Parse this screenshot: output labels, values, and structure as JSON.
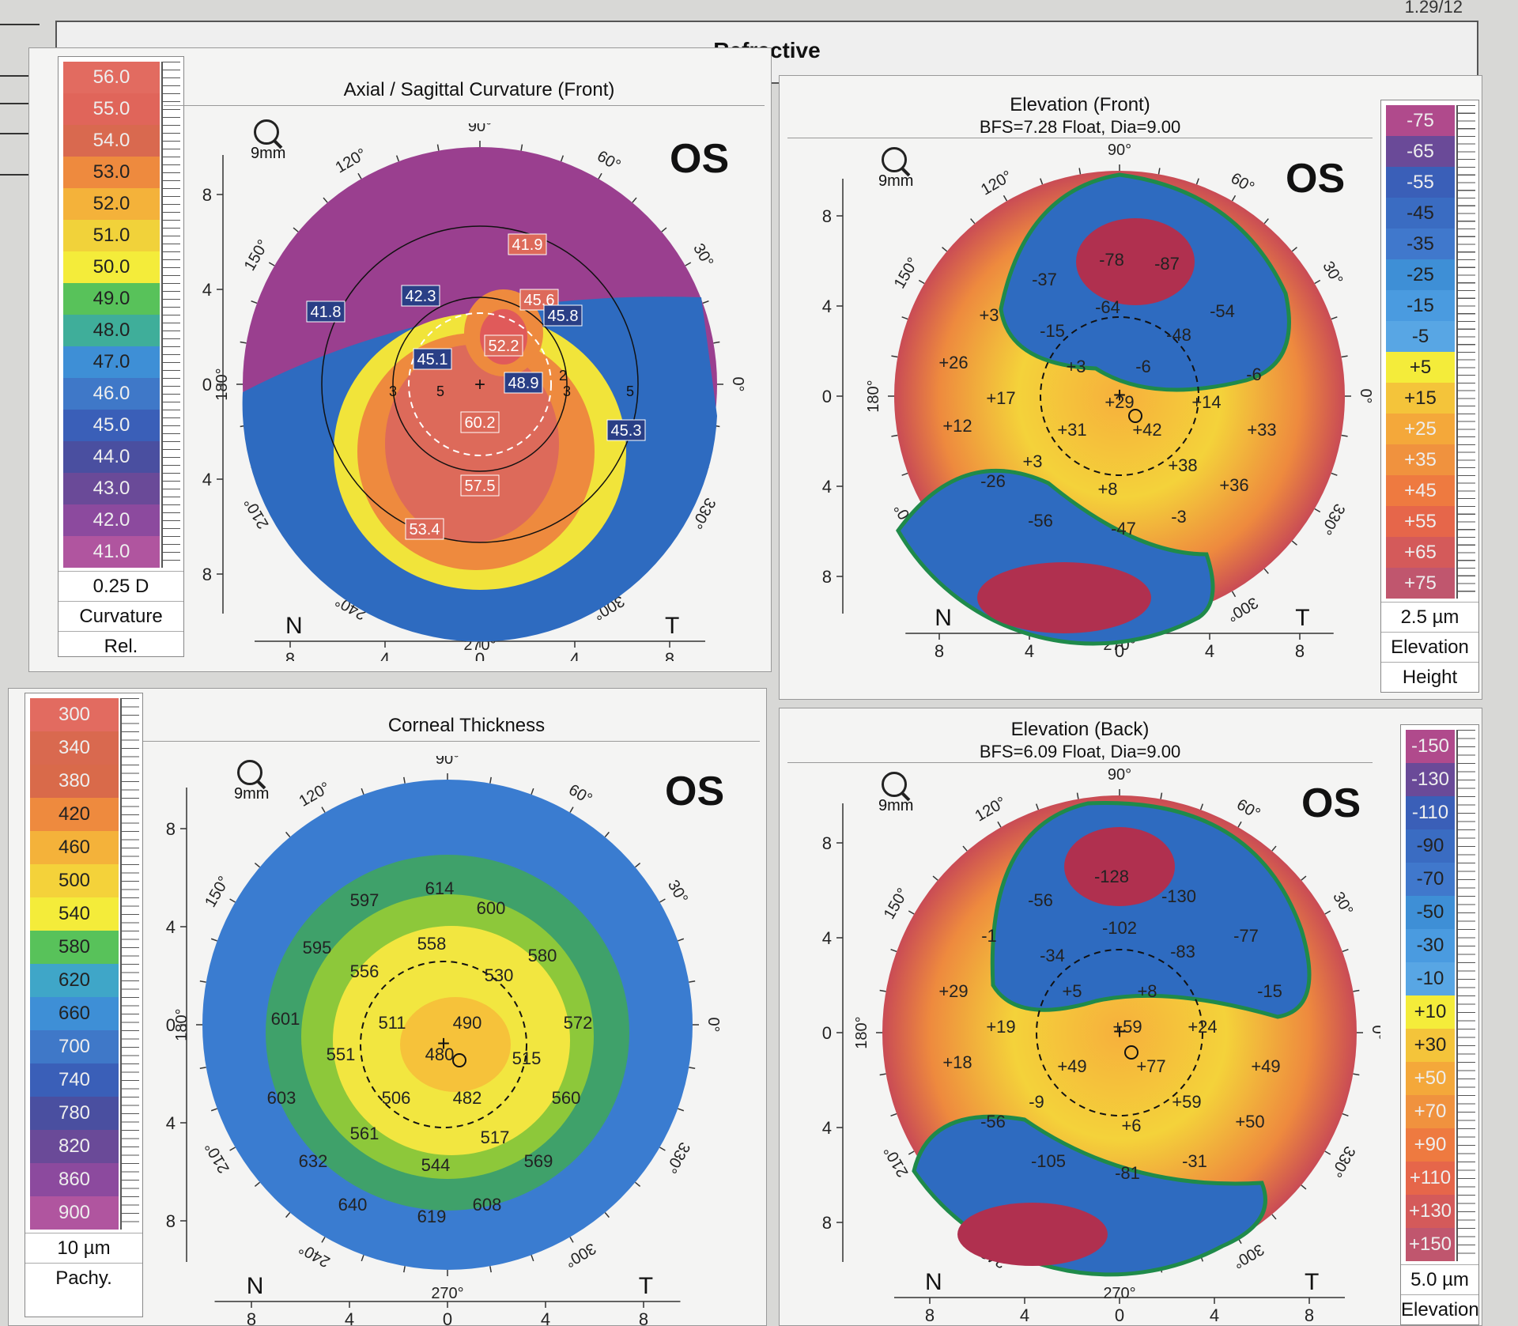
{
  "header": {
    "title": "Refractive",
    "corner_label": "1.29/12"
  },
  "eye": "OS",
  "zoom_label": "9mm",
  "axis_ticks": [
    "8",
    "4",
    "0",
    "4",
    "8"
  ],
  "direction_labels": {
    "nasal": "N",
    "temporal": "T"
  },
  "angle_labels": {
    "a90": "90°",
    "a60": "60°",
    "a30": "30°",
    "a0": "0°",
    "a330": "330°",
    "a300": "300°",
    "a270": "270°",
    "a240": "240°",
    "a210": "210°",
    "a180": "180°",
    "a150": "150°",
    "a120": "120°"
  },
  "panels": {
    "axial": {
      "title": "Axial / Sagittal Curvature (Front)",
      "values": [
        "41.9",
        "42.3",
        "41.8",
        "45.6",
        "45.8",
        "52.2",
        "45.1",
        "48.9",
        "60.2",
        "45.3",
        "57.5",
        "53.4"
      ],
      "ring_labels": [
        "5",
        "3",
        "3",
        "5",
        "2"
      ]
    },
    "elev_front": {
      "title": "Elevation (Front)",
      "subtitle": "BFS=7.28 Float, Dia=9.00",
      "values": [
        "-37",
        "-78",
        "-87",
        "+3",
        "-64",
        "-54",
        "-15",
        "-48",
        "+26",
        "+3",
        "-6",
        "-6",
        "+17",
        "+29",
        "+14",
        "+12",
        "+31",
        "+42",
        "+33",
        "+3",
        "+38",
        "-26",
        "+8",
        "+36",
        "-56",
        "-47",
        "-3"
      ]
    },
    "thickness": {
      "title": "Corneal Thickness",
      "values": [
        "614",
        "597",
        "600",
        "595",
        "558",
        "580",
        "556",
        "530",
        "601",
        "511",
        "490",
        "572",
        "551",
        "480",
        "515",
        "603",
        "506",
        "482",
        "560",
        "561",
        "517",
        "632",
        "544",
        "569",
        "640",
        "608",
        "619"
      ]
    },
    "elev_back": {
      "title": "Elevation (Back)",
      "subtitle": "BFS=6.09 Float, Dia=9.00",
      "values": [
        "-128",
        "-56",
        "-130",
        "-102",
        "-1",
        "-77",
        "-34",
        "-83",
        "+29",
        "+5",
        "+8",
        "-15",
        "+19",
        "+59",
        "+24",
        "+18",
        "+49",
        "+77",
        "+49",
        "-9",
        "+59",
        "-56",
        "+6",
        "+50",
        "-105",
        "-31",
        "-81"
      ]
    }
  },
  "scales": {
    "curvature": {
      "values": [
        "56.0",
        "55.0",
        "54.0",
        "53.0",
        "52.0",
        "51.0",
        "50.0",
        "49.0",
        "48.0",
        "47.0",
        "46.0",
        "45.0",
        "44.0",
        "43.0",
        "42.0",
        "41.0"
      ],
      "colors": [
        "#e26b60",
        "#e0655a",
        "#d9694f",
        "#ee8a3e",
        "#f4b23a",
        "#f1d23a",
        "#f4ec3a",
        "#58c25a",
        "#3fae9a",
        "#3e8fd6",
        "#3f78c8",
        "#3a5fb8",
        "#4a4fa0",
        "#6a4a98",
        "#8c4a9e",
        "#b0559f"
      ],
      "step": "0.25 D",
      "footer1": "Curvature",
      "footer2": "Rel."
    },
    "elevation_front": {
      "values": [
        "-75",
        "-65",
        "-55",
        "-45",
        "-35",
        "-25",
        "-15",
        "-5",
        "+5",
        "+15",
        "+25",
        "+35",
        "+45",
        "+55",
        "+65",
        "+75"
      ],
      "colors": [
        "#b04a8c",
        "#6a4a98",
        "#3a5fb8",
        "#3a6cc2",
        "#4078cc",
        "#3e8fd6",
        "#4a9be0",
        "#58a6e4",
        "#f4ec3a",
        "#f4c43a",
        "#f4a83a",
        "#f0923e",
        "#ee7a40",
        "#e6664a",
        "#d45a5a",
        "#c0566e"
      ],
      "step": "2.5 µm",
      "footer1": "Elevation",
      "footer2": "Height"
    },
    "pachy": {
      "values": [
        "300",
        "340",
        "380",
        "420",
        "460",
        "500",
        "540",
        "580",
        "620",
        "660",
        "700",
        "740",
        "780",
        "820",
        "860",
        "900"
      ],
      "colors": [
        "#e26b60",
        "#d9694f",
        "#d96a4a",
        "#ee8a3e",
        "#f4b23a",
        "#f4d23a",
        "#f4ec3a",
        "#58c25a",
        "#3fa6c8",
        "#3e8fd6",
        "#3f78c8",
        "#3a5fb8",
        "#4a4fa0",
        "#6a4a98",
        "#8c4a9e",
        "#b0559f"
      ],
      "step": "10 µm",
      "footer1": "Pachy."
    },
    "elevation_back": {
      "values": [
        "-150",
        "-130",
        "-110",
        "-90",
        "-70",
        "-50",
        "-30",
        "-10",
        "+10",
        "+30",
        "+50",
        "+70",
        "+90",
        "+110",
        "+130",
        "+150"
      ],
      "colors": [
        "#b04a8c",
        "#6a4a98",
        "#3a5fb8",
        "#3a6cc2",
        "#4078cc",
        "#3e8fd6",
        "#4a9be0",
        "#58a6e4",
        "#f4ec3a",
        "#f4c43a",
        "#f4a83a",
        "#f0923e",
        "#ee7a40",
        "#e6664a",
        "#d45a5a",
        "#c0566e"
      ],
      "step": "5.0 µm",
      "footer1": "Elevation"
    }
  },
  "colors": {
    "accent_text": "#111111",
    "map_purple": "#9a3f8f",
    "map_blue": "#2e6bc0"
  }
}
